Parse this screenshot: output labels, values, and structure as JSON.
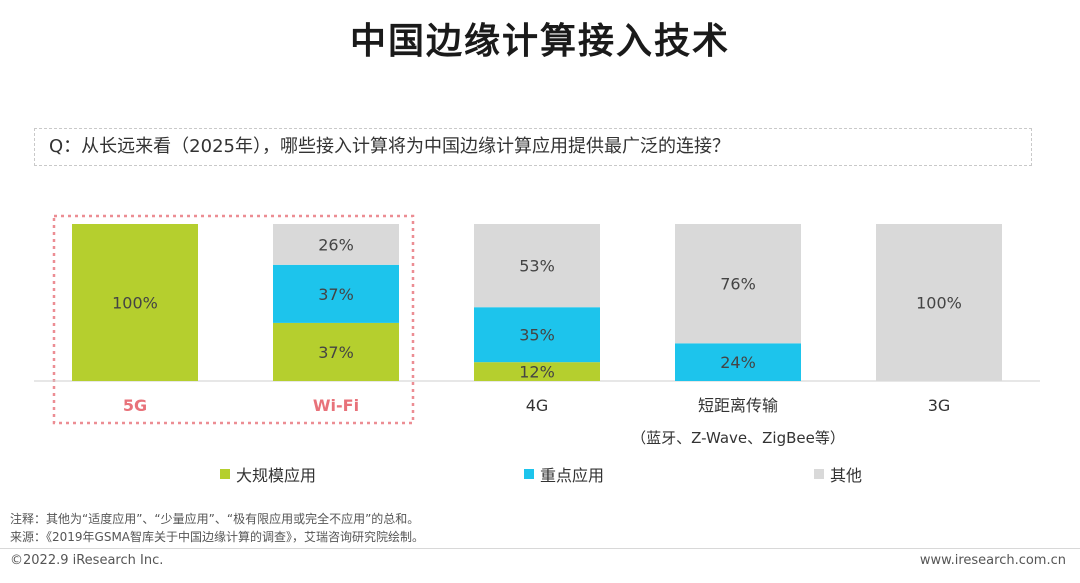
{
  "title": "中国边缘计算接入技术",
  "question": "Q：从长远来看（2025年），哪些接入计算将为中国边缘计算应用提供最广泛的连接？",
  "chart_data": {
    "type": "bar",
    "stacked": true,
    "categories": [
      "5G",
      "Wi-Fi",
      "4G",
      "短距离传输",
      "3G"
    ],
    "category_sublabels": [
      "",
      "",
      "",
      "（蓝牙、Z-Wave、ZigBee等）",
      ""
    ],
    "highlighted_categories": [
      "5G",
      "Wi-Fi"
    ],
    "unit": "%",
    "ylim": [
      0,
      100
    ],
    "series": [
      {
        "name": "大规模应用",
        "color": "#b5cf2e",
        "values": [
          100,
          37,
          12,
          0,
          0
        ]
      },
      {
        "name": "重点应用",
        "color": "#1dc4ec",
        "values": [
          0,
          37,
          35,
          24,
          0
        ]
      },
      {
        "name": "其他",
        "color": "#d9d9d9",
        "values": [
          0,
          26,
          53,
          76,
          100
        ]
      }
    ],
    "category_label_colors": {
      "highlight": "#e8727a",
      "normal": "#333333"
    }
  },
  "notes": {
    "note": "注释：其他为“适度应用”、“少量应用”、“极有限应用或完全不应用”的总和。",
    "source": "来源：《2019年GSMA智库关于中国边缘计算的调查》，艾瑞咨询研究院绘制。"
  },
  "footer": {
    "left": "©2022.9 iResearch Inc.",
    "right": "www.iresearch.com.cn"
  }
}
